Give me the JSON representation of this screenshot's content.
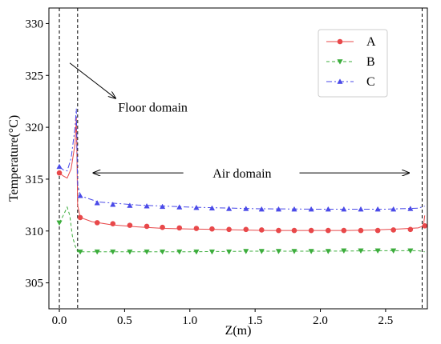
{
  "chart_data": {
    "type": "line",
    "title": "",
    "xlabel": "Z(m)",
    "ylabel": "Temperature(°C)",
    "xlim": [
      -0.08,
      2.82
    ],
    "ylim": [
      302.5,
      331.5
    ],
    "xticks": [
      0.0,
      0.5,
      1.0,
      1.5,
      2.0,
      2.5
    ],
    "xtick_labels": [
      "0.0",
      "0.5",
      "1.0",
      "1.5",
      "2.0",
      "2.5"
    ],
    "yticks": [
      305,
      310,
      315,
      320,
      325,
      330
    ],
    "ytick_labels": [
      "305",
      "310",
      "315",
      "320",
      "325",
      "330"
    ],
    "grid": false,
    "legend_position": "top-right",
    "vlines": [
      0.0,
      0.14,
      2.78
    ],
    "annotations": {
      "floor_label": "Floor domain",
      "air_label": "Air domain"
    },
    "series": [
      {
        "name": "A",
        "color": "#e8484a",
        "line_style": "solid",
        "marker": "circle",
        "x": [
          0.0,
          0.03,
          0.06,
          0.09,
          0.12,
          0.13,
          0.135,
          0.14,
          0.16,
          0.25,
          0.4,
          0.6,
          0.8,
          1.0,
          1.2,
          1.4,
          1.6,
          1.8,
          2.0,
          2.2,
          2.4,
          2.6,
          2.75,
          2.79,
          2.8
        ],
        "y": [
          315.6,
          315.3,
          315.1,
          316.0,
          318.4,
          320.9,
          317.0,
          312.5,
          311.3,
          310.9,
          310.6,
          310.4,
          310.25,
          310.2,
          310.15,
          310.1,
          310.05,
          310.05,
          310.05,
          310.05,
          310.1,
          310.2,
          310.3,
          310.5,
          311.5
        ],
        "marker_x": [
          0.0,
          0.16,
          0.29,
          0.41,
          0.54,
          0.67,
          0.79,
          0.92,
          1.05,
          1.17,
          1.3,
          1.43,
          1.55,
          1.68,
          1.8,
          1.93,
          2.06,
          2.18,
          2.31,
          2.44,
          2.56,
          2.69,
          2.8
        ],
        "marker_y": [
          315.6,
          311.3,
          310.8,
          310.7,
          310.55,
          310.45,
          310.35,
          310.3,
          310.25,
          310.2,
          310.15,
          310.15,
          310.1,
          310.05,
          310.05,
          310.05,
          310.05,
          310.05,
          310.05,
          310.05,
          310.1,
          310.15,
          310.5
        ]
      },
      {
        "name": "B",
        "color": "#3cad3c",
        "line_style": "dashed",
        "marker": "triangle-down",
        "x": [
          0.0,
          0.03,
          0.06,
          0.08,
          0.1,
          0.12,
          0.13,
          0.14,
          0.16,
          0.3,
          0.6,
          1.0,
          1.5,
          2.0,
          2.5,
          2.75,
          2.8
        ],
        "y": [
          310.8,
          311.5,
          312.3,
          311.5,
          309.5,
          308.6,
          308.3,
          308.0,
          308.0,
          308.0,
          308.0,
          308.0,
          308.05,
          308.05,
          308.1,
          308.1,
          308.0
        ],
        "marker_x": [
          0.0,
          0.16,
          0.29,
          0.41,
          0.54,
          0.67,
          0.79,
          0.92,
          1.05,
          1.17,
          1.3,
          1.43,
          1.55,
          1.68,
          1.8,
          1.93,
          2.06,
          2.18,
          2.31,
          2.44,
          2.56,
          2.69
        ],
        "marker_y": [
          310.8,
          308.0,
          308.0,
          308.0,
          308.0,
          308.0,
          308.0,
          308.0,
          308.0,
          308.0,
          308.0,
          308.05,
          308.05,
          308.05,
          308.05,
          308.05,
          308.05,
          308.1,
          308.1,
          308.1,
          308.1,
          308.1
        ]
      },
      {
        "name": "C",
        "color": "#4a4ae8",
        "line_style": "dashdot",
        "marker": "triangle-up",
        "x": [
          0.0,
          0.03,
          0.06,
          0.09,
          0.12,
          0.13,
          0.135,
          0.14,
          0.16,
          0.3,
          0.6,
          1.0,
          1.5,
          2.0,
          2.5,
          2.75,
          2.8
        ],
        "y": [
          316.2,
          315.9,
          315.8,
          317.0,
          320.0,
          321.8,
          318.0,
          314.5,
          313.4,
          312.8,
          312.5,
          312.3,
          312.15,
          312.1,
          312.1,
          312.2,
          312.4
        ],
        "marker_x": [
          0.0,
          0.16,
          0.29,
          0.41,
          0.54,
          0.67,
          0.79,
          0.92,
          1.05,
          1.17,
          1.3,
          1.43,
          1.55,
          1.68,
          1.8,
          1.93,
          2.06,
          2.18,
          2.31,
          2.44,
          2.56,
          2.69
        ],
        "marker_y": [
          316.2,
          313.4,
          312.7,
          312.55,
          312.45,
          312.4,
          312.35,
          312.3,
          312.25,
          312.2,
          312.15,
          312.15,
          312.1,
          312.1,
          312.1,
          312.1,
          312.1,
          312.1,
          312.1,
          312.1,
          312.1,
          312.15
        ]
      }
    ]
  }
}
